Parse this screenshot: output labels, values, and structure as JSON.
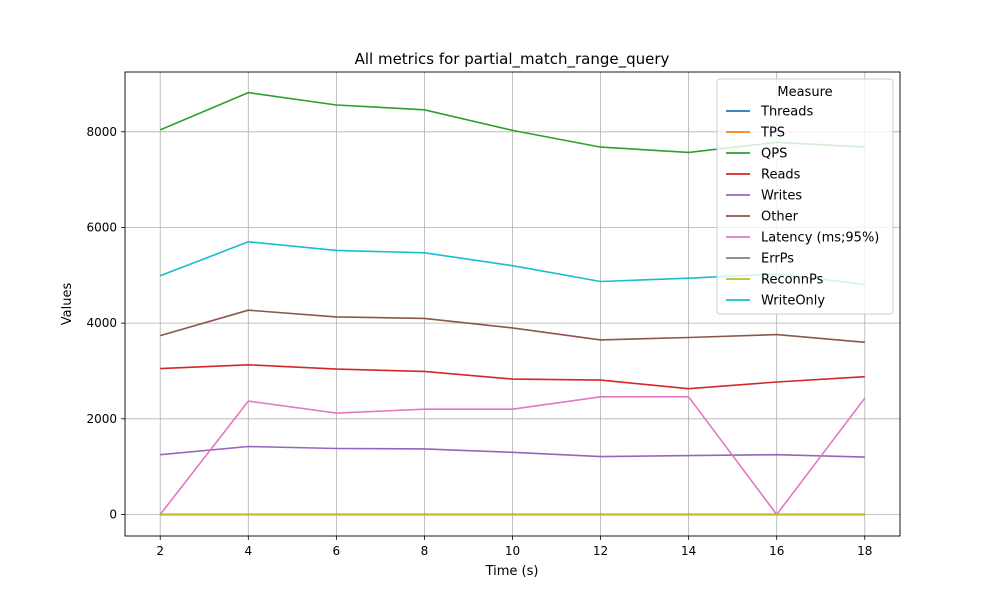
{
  "chart_data": {
    "type": "line",
    "title": "All metrics for partial_match_range_query",
    "xlabel": "Time (s)",
    "ylabel": "Values",
    "x": [
      2,
      4,
      6,
      8,
      10,
      12,
      14,
      16,
      18
    ],
    "xlim": [
      1.2,
      18.8
    ],
    "ylim": [
      -450,
      9250
    ],
    "xticks": [
      2,
      4,
      6,
      8,
      10,
      12,
      14,
      16,
      18
    ],
    "yticks": [
      0,
      2000,
      4000,
      6000,
      8000
    ],
    "grid": true,
    "legend": {
      "title": "Measure",
      "placement": "top-right"
    },
    "series": [
      {
        "name": "Threads",
        "color": "#1f77b4",
        "values": [
          0,
          0,
          0,
          0,
          0,
          0,
          0,
          0,
          0
        ]
      },
      {
        "name": "TPS",
        "color": "#ff7f0e",
        "values": [
          0,
          0,
          0,
          0,
          0,
          0,
          0,
          0,
          0
        ]
      },
      {
        "name": "QPS",
        "color": "#2ca02c",
        "values": [
          8040,
          8820,
          8560,
          8460,
          8030,
          7680,
          7570,
          7780,
          7680
        ]
      },
      {
        "name": "Reads",
        "color": "#d62728",
        "values": [
          3050,
          3130,
          3040,
          2990,
          2830,
          2810,
          2630,
          2770,
          2880
        ]
      },
      {
        "name": "Writes",
        "color": "#9467bd",
        "values": [
          1250,
          1420,
          1380,
          1370,
          1300,
          1210,
          1230,
          1250,
          1200
        ]
      },
      {
        "name": "Other",
        "color": "#8c564b",
        "values": [
          3740,
          4270,
          4130,
          4100,
          3900,
          3650,
          3700,
          3760,
          3600
        ]
      },
      {
        "name": "Latency (ms;95%)",
        "color": "#e377c2",
        "values": [
          0,
          2370,
          2120,
          2200,
          2200,
          2460,
          2460,
          0,
          2430
        ]
      },
      {
        "name": "ErrPs",
        "color": "#7f7f7f",
        "values": [
          0,
          0,
          0,
          0,
          0,
          0,
          0,
          0,
          0
        ]
      },
      {
        "name": "ReconnPs",
        "color": "#bcbd22",
        "values": [
          0,
          0,
          0,
          0,
          0,
          0,
          0,
          0,
          0
        ]
      },
      {
        "name": "WriteOnly",
        "color": "#17becf",
        "values": [
          4990,
          5700,
          5520,
          5470,
          5200,
          4870,
          4940,
          5030,
          4810
        ]
      }
    ]
  }
}
